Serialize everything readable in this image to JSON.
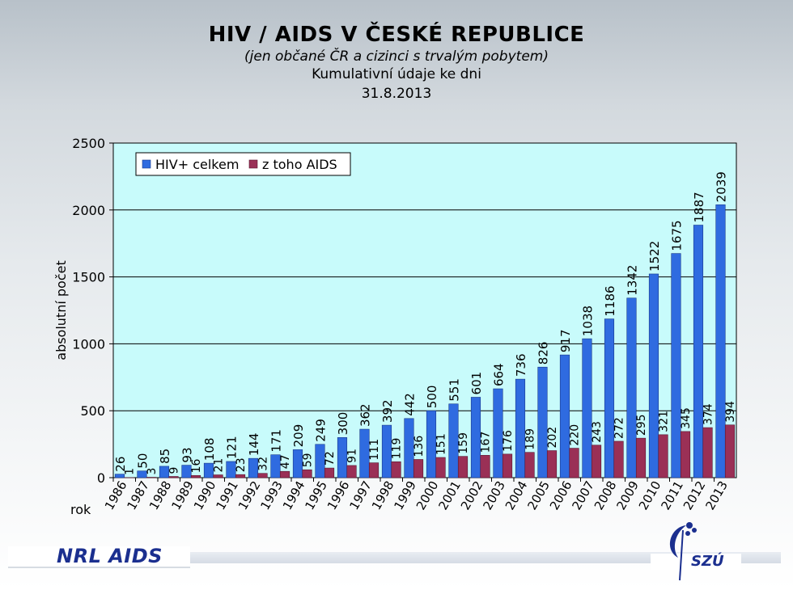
{
  "header": {
    "title": "HIV / AIDS V ČESKÉ REPUBLICE",
    "subtitle": "(jen občané ČR a cizinci s trvalým pobytem)",
    "line2": "Kumulativní údaje ke dni",
    "date": "31.8.2013"
  },
  "footer": {
    "left_logo": "NRL AIDS",
    "right_logo": "SZÚ"
  },
  "chart_data": {
    "type": "bar",
    "xlabel": "rok",
    "ylabel": "absolutní počet",
    "ylim": [
      0,
      2500
    ],
    "yticks": [
      0,
      500,
      1000,
      1500,
      2000,
      2500
    ],
    "grid": true,
    "legend_position": "top-left",
    "categories": [
      "1986",
      "1987",
      "1988",
      "1989",
      "1990",
      "1991",
      "1992",
      "1993",
      "1994",
      "1995",
      "1996",
      "1997",
      "1998",
      "1999",
      "2000",
      "2001",
      "2002",
      "2003",
      "2004",
      "2005",
      "2006",
      "2007",
      "2008",
      "2009",
      "2010",
      "2011",
      "2012",
      "2013"
    ],
    "series": [
      {
        "name": "HIV+ celkem",
        "color": "#2f6be0",
        "values": [
          26,
          50,
          85,
          93,
          108,
          121,
          144,
          171,
          209,
          249,
          300,
          362,
          392,
          442,
          500,
          551,
          601,
          664,
          736,
          826,
          917,
          1038,
          1186,
          1342,
          1522,
          1675,
          1887,
          2039
        ]
      },
      {
        "name": "z toho AIDS",
        "color": "#9a3056",
        "values": [
          1,
          3,
          9,
          16,
          21,
          23,
          32,
          47,
          59,
          72,
          91,
          111,
          119,
          136,
          151,
          159,
          167,
          176,
          189,
          202,
          220,
          243,
          272,
          295,
          321,
          345,
          374,
          394
        ]
      }
    ],
    "plot_background": "#c8fbfb"
  }
}
